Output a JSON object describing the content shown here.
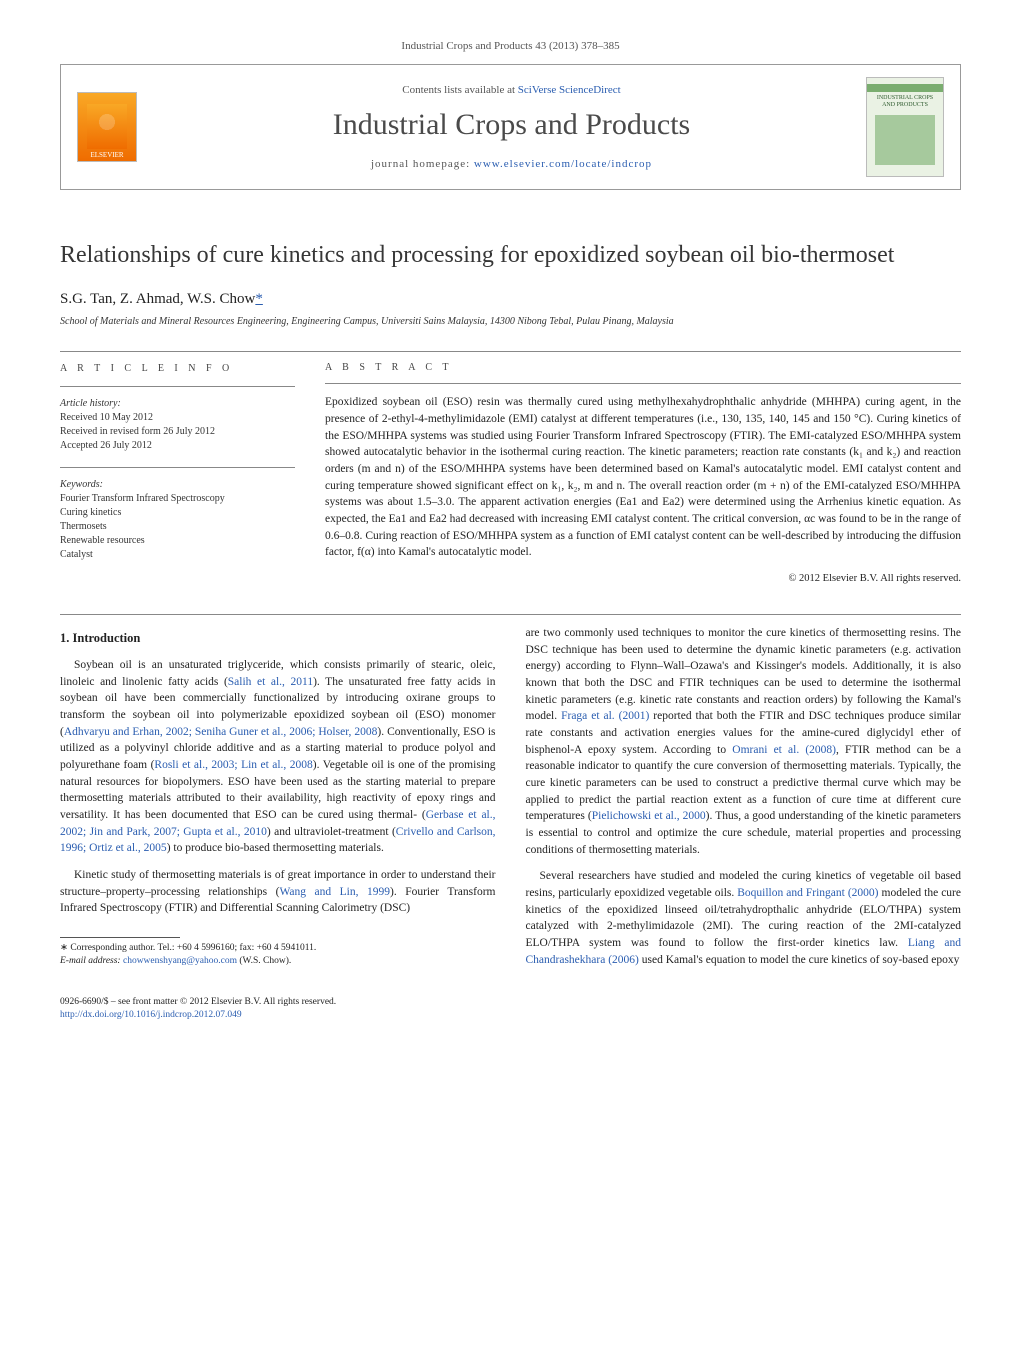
{
  "journal_ref": "Industrial Crops and Products 43 (2013) 378–385",
  "header": {
    "contents_prefix": "Contents lists available at ",
    "contents_link": "SciVerse ScienceDirect",
    "journal_title": "Industrial Crops and Products",
    "homepage_prefix": "journal homepage: ",
    "homepage_link": "www.elsevier.com/locate/indcrop",
    "elsevier_label": "ELSEVIER",
    "cover_label_top": "INDUSTRIAL CROPS",
    "cover_label_bottom": "AND PRODUCTS"
  },
  "article": {
    "title": "Relationships of cure kinetics and processing for epoxidized soybean oil bio-thermoset",
    "authors_plain": "S.G. Tan, Z. Ahmad, W.S. Chow",
    "corr_mark": "*",
    "affiliation": "School of Materials and Mineral Resources Engineering, Engineering Campus, Universiti Sains Malaysia, 14300 Nibong Tebal, Pulau Pinang, Malaysia"
  },
  "info": {
    "heading_info": "a r t i c l e   i n f o",
    "heading_abs": "a b s t r a c t",
    "history_label": "Article history:",
    "received": "Received 10 May 2012",
    "revised": "Received in revised form 26 July 2012",
    "accepted": "Accepted 26 July 2012",
    "keywords_label": "Keywords:",
    "keywords": [
      "Fourier Transform Infrared Spectroscopy",
      "Curing kinetics",
      "Thermosets",
      "Renewable resources",
      "Catalyst"
    ]
  },
  "abstract": {
    "text": "Epoxidized soybean oil (ESO) resin was thermally cured using methylhexahydrophthalic anhydride (MHHPA) curing agent, in the presence of 2-ethyl-4-methylimidazole (EMI) catalyst at different temperatures (i.e., 130, 135, 140, 145 and 150 °C). Curing kinetics of the ESO/MHHPA systems was studied using Fourier Transform Infrared Spectroscopy (FTIR). The EMI-catalyzed ESO/MHHPA system showed autocatalytic behavior in the isothermal curing reaction. The kinetic parameters; reaction rate constants (k₁ and k₂) and reaction orders (m and n) of the ESO/MHHPA systems have been determined based on Kamal's autocatalytic model. EMI catalyst content and curing temperature showed significant effect on k₁, k₂, m and n. The overall reaction order (m + n) of the EMI-catalyzed ESO/MHHPA systems was about 1.5–3.0. The apparent activation energies (Ea1 and Ea2) were determined using the Arrhenius kinetic equation. As expected, the Ea1 and Ea2 had decreased with increasing EMI catalyst content. The critical conversion, αc was found to be in the range of 0.6–0.8. Curing reaction of ESO/MHHPA system as a function of EMI catalyst content can be well-described by introducing the diffusion factor, f(α) into Kamal's autocatalytic model.",
    "copyright": "© 2012 Elsevier B.V. All rights reserved."
  },
  "body": {
    "section_heading": "1. Introduction",
    "p1_a": "Soybean oil is an unsaturated triglyceride, which consists primarily of stearic, oleic, linoleic and linolenic fatty acids (",
    "p1_l1": "Salih et al., 2011",
    "p1_b": "). The unsaturated free fatty acids in soybean oil have been commercially functionalized by introducing oxirane groups to transform the soybean oil into polymerizable epoxidized soybean oil (ESO) monomer (",
    "p1_l2": "Adhvaryu and Erhan, 2002; Seniha Guner et al., 2006; Holser, 2008",
    "p1_c": "). Conventionally, ESO is utilized as a polyvinyl chloride additive and as a starting material to produce polyol and polyurethane foam (",
    "p1_l3": "Rosli et al., 2003; Lin et al., 2008",
    "p1_d": "). Vegetable oil is one of the promising natural resources for biopolymers. ESO have been used as the starting material to prepare thermosetting materials attributed to their availability, high reactivity of epoxy rings and versatility. It has been documented that ESO can be cured using thermal- (",
    "p1_l4": "Gerbase et al., 2002; Jin and Park, 2007; Gupta et al., 2010",
    "p1_e": ") and ultraviolet-treatment (",
    "p1_l5": "Crivello and Carlson, 1996; Ortiz et al., 2005",
    "p1_f": ") to produce bio-based thermosetting materials.",
    "p2_a": "Kinetic study of thermosetting materials is of great importance in order to understand their structure–property–processing relationships (",
    "p2_l1": "Wang and Lin, 1999",
    "p2_b": "). Fourier Transform Infrared Spectroscopy (FTIR) and Differential Scanning Calorimetry (DSC)",
    "p3_a": "are two commonly used techniques to monitor the cure kinetics of thermosetting resins. The DSC technique has been used to determine the dynamic kinetic parameters (e.g. activation energy) according to Flynn–Wall–Ozawa's and Kissinger's models. Additionally, it is also known that both the DSC and FTIR techniques can be used to determine the isothermal kinetic parameters (e.g. kinetic rate constants and reaction orders) by following the Kamal's model. ",
    "p3_l1": "Fraga et al. (2001)",
    "p3_b": " reported that both the FTIR and DSC techniques produce similar rate constants and activation energies values for the amine-cured diglycidyl ether of bisphenol-A epoxy system. According to ",
    "p3_l2": "Omrani et al. (2008)",
    "p3_c": ", FTIR method can be a reasonable indicator to quantify the cure conversion of thermosetting materials. Typically, the cure kinetic parameters can be used to construct a predictive thermal curve which may be applied to predict the partial reaction extent as a function of cure time at different cure temperatures (",
    "p3_l3": "Pielichowski et al., 2000",
    "p3_d": "). Thus, a good understanding of the kinetic parameters is essential to control and optimize the cure schedule, material properties and processing conditions of thermosetting materials.",
    "p4_a": "Several researchers have studied and modeled the curing kinetics of vegetable oil based resins, particularly epoxidized vegetable oils. ",
    "p4_l1": "Boquillon and Fringant (2000)",
    "p4_b": " modeled the cure kinetics of the epoxidized linseed oil/tetrahydropthalic anhydride (ELO/THPA) system catalyzed with 2-methylimidazole (2MI). The curing reaction of the 2MI-catalyzed ELO/THPA system was found to follow the first-order kinetics law. ",
    "p4_l2": "Liang and Chandrashekhara (2006)",
    "p4_c": " used Kamal's equation to model the cure kinetics of soy-based epoxy"
  },
  "footnote": {
    "line1_a": "∗ Corresponding author. Tel.: +60 4 5996160; fax: +60 4 5941011.",
    "line2_label": "E-mail address: ",
    "line2_link": "chowwenshyang@yahoo.com",
    "line2_tail": " (W.S. Chow)."
  },
  "bottom": {
    "line1": "0926-6690/$ – see front matter © 2012 Elsevier B.V. All rights reserved.",
    "doi_link": "http://dx.doi.org/10.1016/j.indcrop.2012.07.049"
  },
  "colors": {
    "link": "#2a5db0",
    "text": "#1a1a1a",
    "rule": "#888888"
  }
}
